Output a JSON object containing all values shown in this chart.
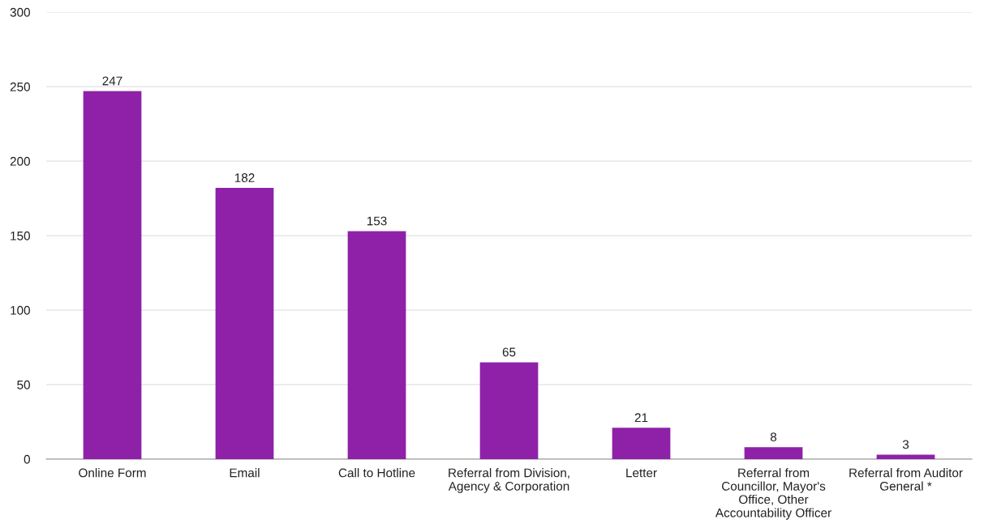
{
  "chart_data": {
    "type": "bar",
    "categories": [
      "Online Form",
      "Email",
      "Call to Hotline",
      "Referral from Division, Agency & Corporation",
      "Letter",
      "Referral from Councillor, Mayor's Office, Other Accountability Officer",
      "Referral from Auditor General *"
    ],
    "values": [
      247,
      182,
      153,
      65,
      21,
      8,
      3
    ],
    "color": "#8e21a8",
    "ylim": [
      0,
      300
    ],
    "yticks": [
      0,
      50,
      100,
      150,
      200,
      250,
      300
    ],
    "grid": "y",
    "data_labels": true
  }
}
